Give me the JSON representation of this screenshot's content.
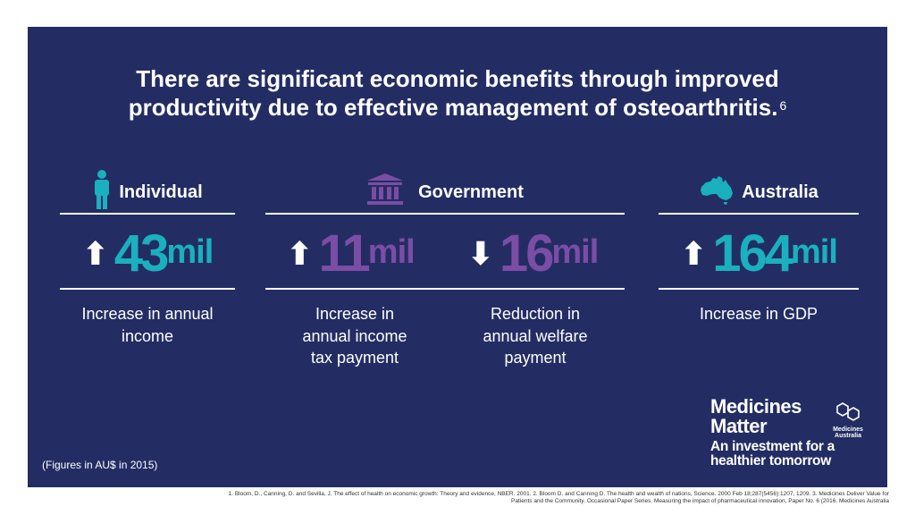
{
  "headline": {
    "line1": "There are significant economic benefits through improved",
    "line2": "productivity due to effective management of osteoarthritis.",
    "superscript": "6"
  },
  "sections": {
    "individual": {
      "label": "Individual",
      "icon": "person-icon"
    },
    "government": {
      "label": "Government",
      "icon": "government-building-icon"
    },
    "australia": {
      "label": "Australia",
      "icon": "australia-map-icon"
    }
  },
  "stats": {
    "individual": {
      "arrow": "up",
      "arrow_glyph": "⬆",
      "value": "43",
      "unit": "mil",
      "color": "#1ab0be",
      "desc_line1": "Increase in annual",
      "desc_line2": "income"
    },
    "gov_tax": {
      "arrow": "up",
      "arrow_glyph": "⬆",
      "value": "11",
      "unit": "mil",
      "color": "#7b4da5",
      "desc_line1": "Increase in",
      "desc_line2": "annual income",
      "desc_line3": "tax payment"
    },
    "gov_welfare": {
      "arrow": "down",
      "arrow_glyph": "⬇",
      "value": "16",
      "unit": "mil",
      "color": "#7b4da5",
      "desc_line1": "Reduction in",
      "desc_line2": "annual welfare",
      "desc_line3": "payment"
    },
    "australia": {
      "arrow": "up",
      "arrow_glyph": "⬆",
      "value": "164",
      "unit": "mil",
      "color": "#1ab0be",
      "desc_line1": "Increase in GDP"
    }
  },
  "figures_note": "(Figures in AU$ in 2015)",
  "brand": {
    "name_line1": "Medicines",
    "name_line2": "Matter",
    "logo_text_line1": "Medicines",
    "logo_text_line2": "Australia",
    "tagline_line1": "An investment for a",
    "tagline_line2": "healthier tomorrow"
  },
  "footnote": {
    "line1": "1. Bloom, D., Canning, D. and Sevilla, J. The effect of health on economic growth: Theory and evidence, NBER. 2001.  2. Bloom D. and Canning D. The health and wealth of nations, Science. 2000 Feb 18;287(5456):1207, 1209.  3. Medicines Deliver Value for",
    "line2": "Patients and the Community. Occasional Paper Series. Measuring the impact of pharmaceutical innovation, Paper No. 6 (2016. Medicines Australia"
  },
  "colors": {
    "background": "#232d63",
    "teal": "#1ab0be",
    "purple": "#7b4da5",
    "text": "#ffffff"
  }
}
